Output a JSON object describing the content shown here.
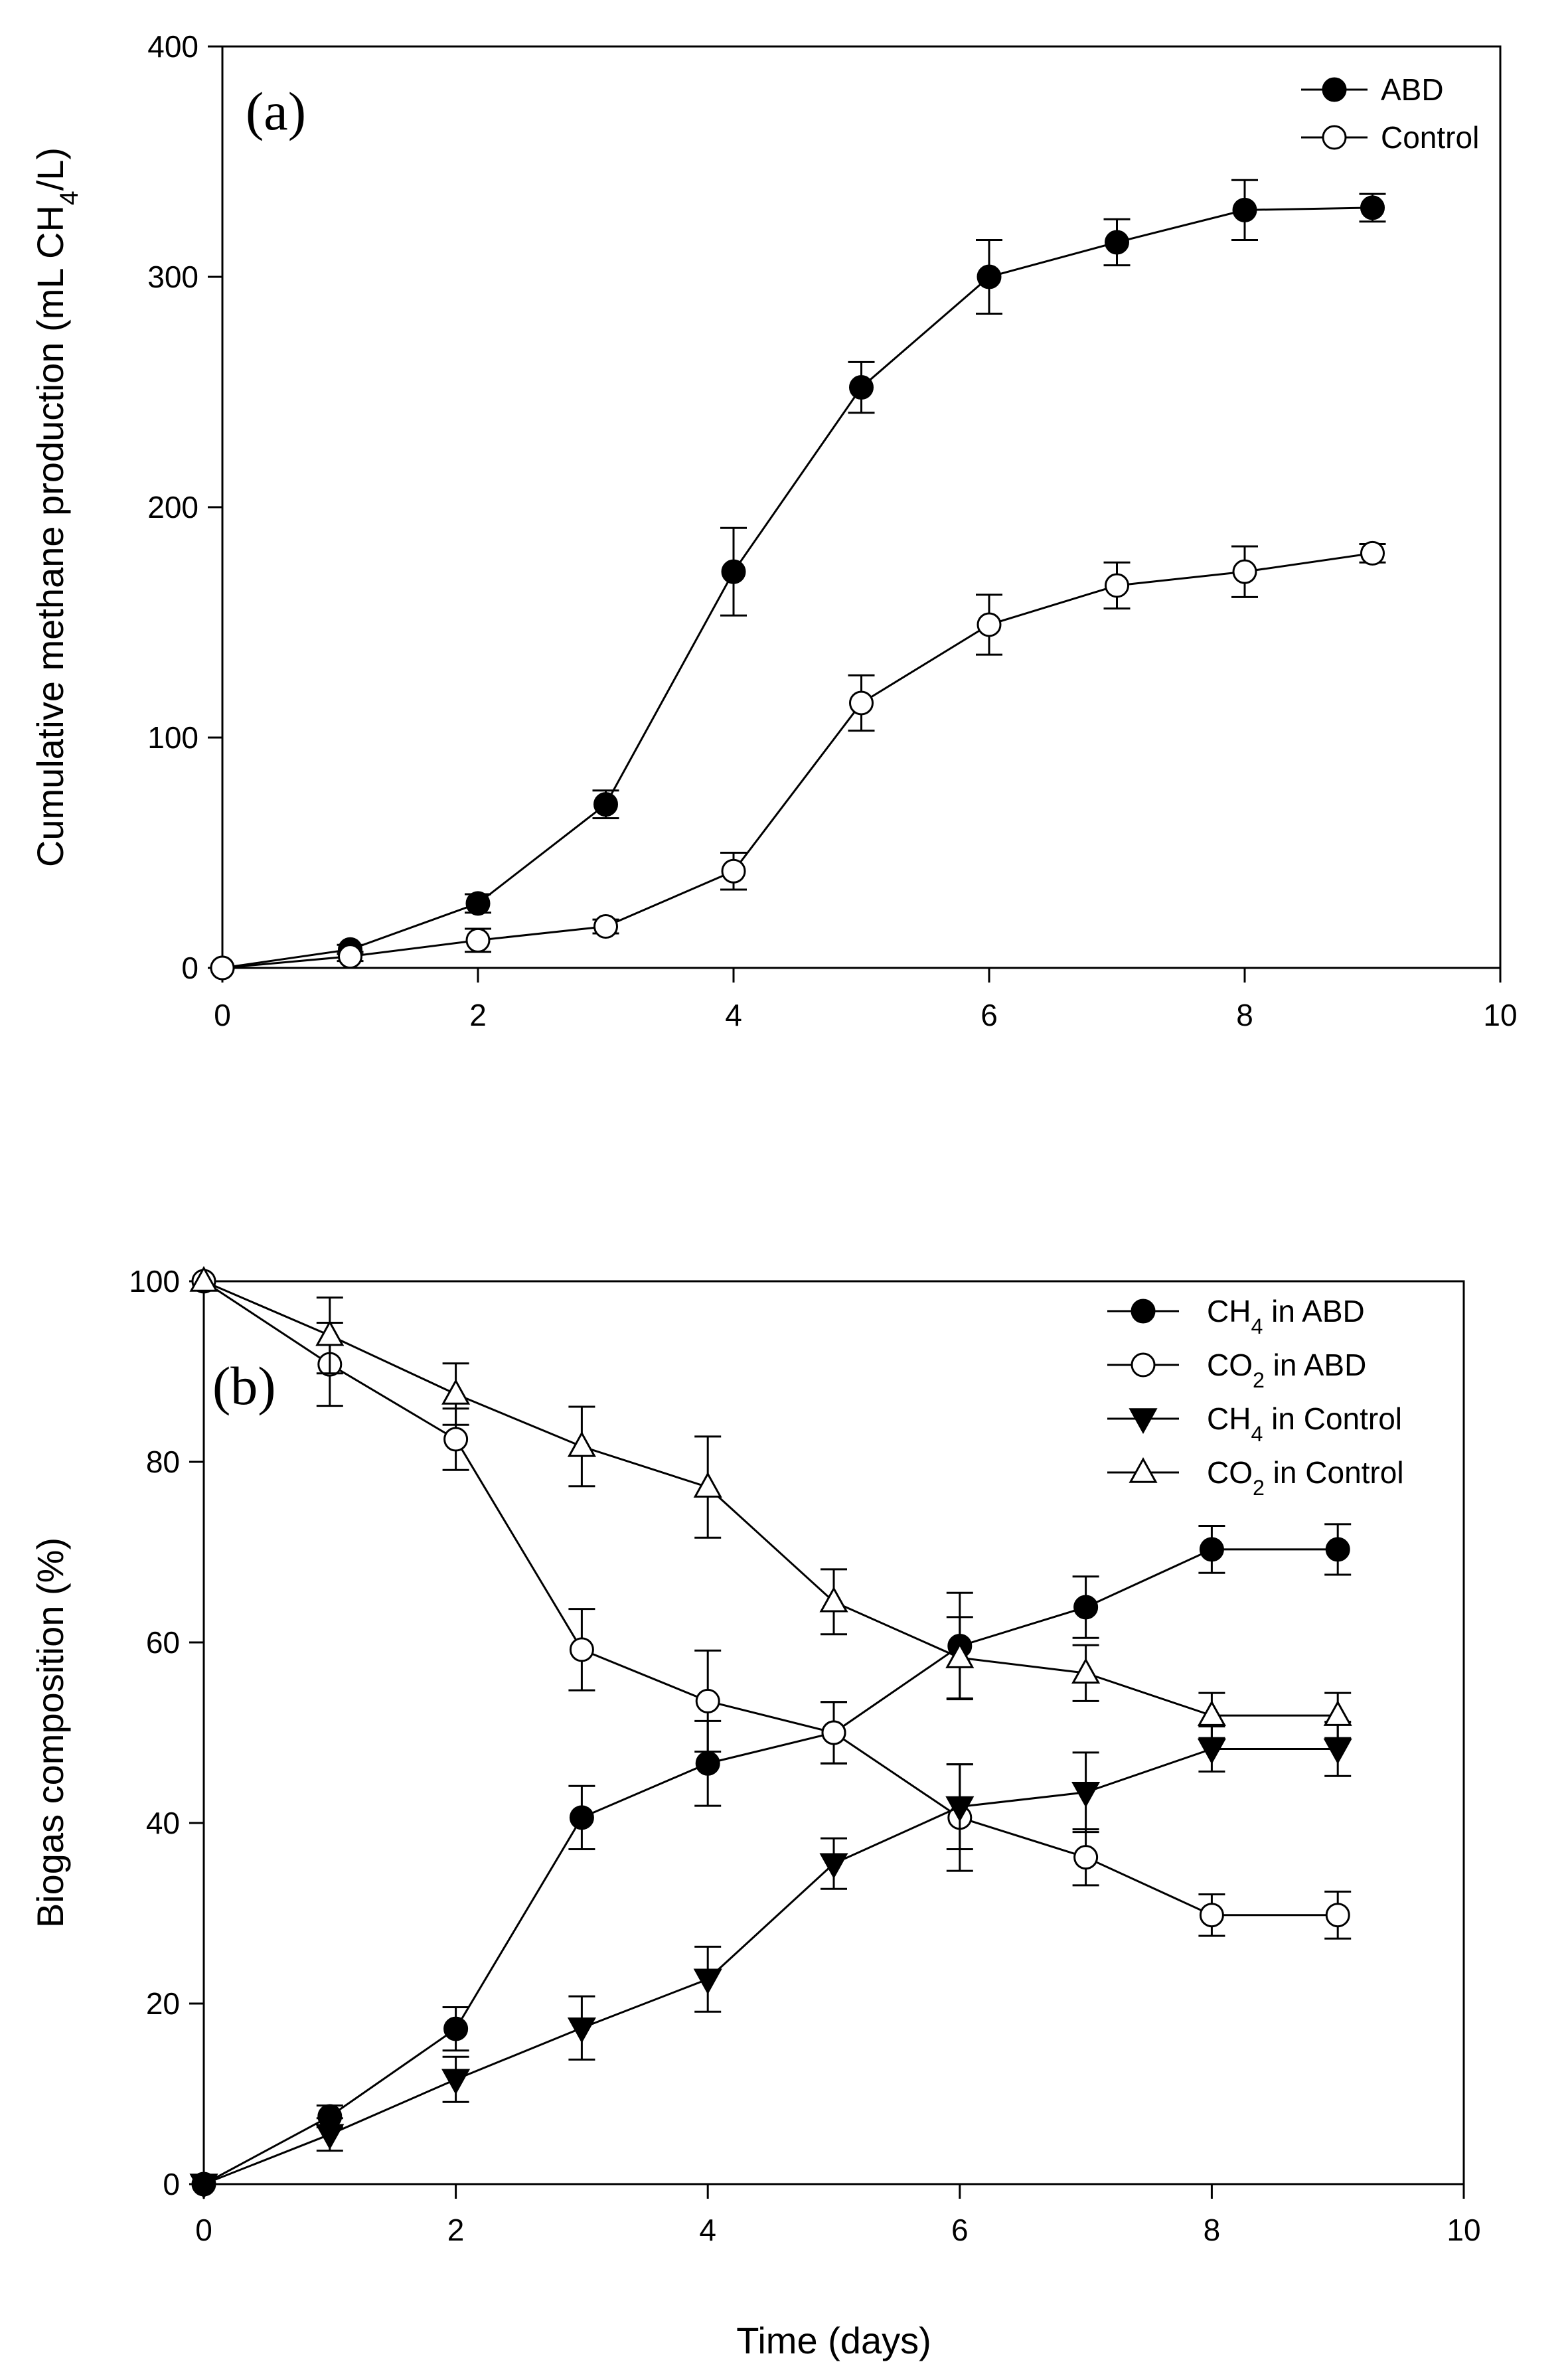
{
  "chart_data": [
    {
      "type": "line",
      "panel_label": "(a)",
      "xlabel": "",
      "ylabel": "Cumulative methane production (mL CH4/L)",
      "ylabel_parts": {
        "before": "Cumulative methane production (mL CH",
        "sub": "4",
        "after": "/L)"
      },
      "xlim": [
        0,
        10
      ],
      "ylim": [
        0,
        400
      ],
      "xticks": [
        "0",
        "2",
        "4",
        "6",
        "8",
        "10"
      ],
      "yticks": [
        "0",
        "100",
        "200",
        "300",
        "400"
      ],
      "grid": false,
      "legend_position": "top-right",
      "x": [
        0,
        1,
        2,
        3,
        4,
        5,
        6,
        7,
        8,
        9
      ],
      "series": [
        {
          "name": "ABD",
          "legend": {
            "before": "ABD",
            "sub": "",
            "after": ""
          },
          "marker": "circle-filled",
          "values": [
            0,
            8,
            28,
            71,
            172,
            252,
            300,
            315,
            329,
            330
          ],
          "errors": [
            0,
            2,
            4,
            6,
            19,
            11,
            16,
            10,
            13,
            6
          ]
        },
        {
          "name": "Control",
          "legend": {
            "before": "Control",
            "sub": "",
            "after": ""
          },
          "marker": "circle-open",
          "values": [
            0,
            5,
            12,
            18,
            42,
            115,
            149,
            166,
            172,
            180
          ],
          "errors": [
            0,
            2,
            5,
            3,
            8,
            12,
            13,
            10,
            11,
            4
          ]
        }
      ]
    },
    {
      "type": "line",
      "panel_label": "(b)",
      "xlabel": "Time (days)",
      "ylabel": "Biogas composition (%)",
      "ylabel_parts": {
        "before": "Biogas composition (%)",
        "sub": "",
        "after": ""
      },
      "xlim": [
        0,
        10
      ],
      "ylim": [
        0,
        100
      ],
      "xticks": [
        "0",
        "2",
        "4",
        "6",
        "8",
        "10"
      ],
      "yticks": [
        "0",
        "20",
        "40",
        "60",
        "80",
        "100"
      ],
      "grid": false,
      "legend_position": "top-right",
      "x": [
        0,
        1,
        2,
        3,
        4,
        5,
        6,
        7,
        8,
        9
      ],
      "series": [
        {
          "name": "CH4 in ABD",
          "legend": {
            "before": "CH",
            "sub": "4",
            "after": " in ABD"
          },
          "marker": "circle-filled",
          "values": [
            0,
            7.5,
            17.2,
            40.6,
            46.6,
            50.0,
            59.6,
            63.9,
            70.3,
            70.3
          ],
          "errors": [
            0,
            1.2,
            2.4,
            3.5,
            4.7,
            3.4,
            5.9,
            3.4,
            2.6,
            2.8
          ]
        },
        {
          "name": "CO2 in ABD",
          "legend": {
            "before": "CO",
            "sub": "2",
            "after": " in ABD"
          },
          "marker": "circle-open",
          "values": [
            100,
            90.8,
            82.5,
            59.2,
            53.5,
            50.0,
            40.6,
            36.2,
            29.8,
            29.8
          ],
          "errors": [
            0,
            4.6,
            3.4,
            4.5,
            5.6,
            3.4,
            5.9,
            3.1,
            2.3,
            2.6
          ]
        },
        {
          "name": "CH4 in Control",
          "legend": {
            "before": "CH",
            "sub": "4",
            "after": " in Control"
          },
          "marker": "triangle-down-filled",
          "values": [
            0,
            5.5,
            11.6,
            17.3,
            22.7,
            35.5,
            41.8,
            43.4,
            48.2,
            48.2
          ],
          "errors": [
            0,
            1.8,
            2.5,
            3.5,
            3.6,
            2.8,
            4.7,
            4.4,
            2.5,
            3.0
          ]
        },
        {
          "name": "CO2 in Control",
          "legend": {
            "before": "CO",
            "sub": "2",
            "after": " in Control"
          },
          "marker": "triangle-up-open",
          "values": [
            100,
            94.0,
            87.5,
            81.7,
            77.2,
            64.5,
            58.3,
            56.6,
            51.9,
            51.9
          ],
          "errors": [
            0,
            4.2,
            3.4,
            4.4,
            5.6,
            3.6,
            4.5,
            3.1,
            2.5,
            2.5
          ]
        }
      ]
    }
  ]
}
